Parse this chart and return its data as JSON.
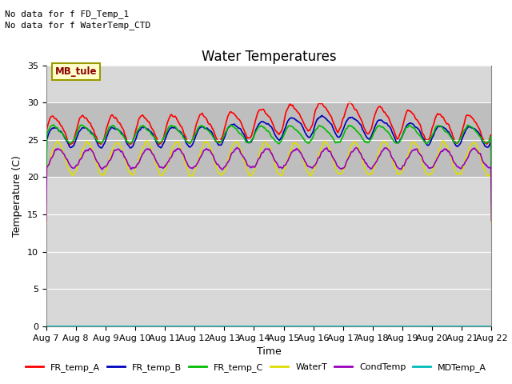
{
  "title": "Water Temperatures",
  "xlabel": "Time",
  "ylabel": "Temperature (C)",
  "ylim": [
    0,
    35
  ],
  "yticks": [
    0,
    5,
    10,
    15,
    20,
    25,
    30,
    35
  ],
  "date_labels": [
    "Aug 7",
    "Aug 8",
    "Aug 9",
    "Aug 10",
    "Aug 11",
    "Aug 12",
    "Aug 13",
    "Aug 14",
    "Aug 15",
    "Aug 16",
    "Aug 17",
    "Aug 18",
    "Aug 19",
    "Aug 20",
    "Aug 21",
    "Aug 22"
  ],
  "shaded_band": [
    20,
    30
  ],
  "no_data_text": [
    "No data for f FD_Temp_1",
    "No data for f WaterTemp_CTD"
  ],
  "mb_tule_label": "MB_tule",
  "legend_entries": [
    "FR_temp_A",
    "FR_temp_B",
    "FR_temp_C",
    "WaterT",
    "CondTemp",
    "MDTemp_A"
  ],
  "legend_colors": [
    "#ff0000",
    "#0000bb",
    "#00bb00",
    "#dddd00",
    "#9900bb",
    "#00bbbb"
  ],
  "line_colors": [
    "#ff0000",
    "#0000bb",
    "#00bb00",
    "#dddd00",
    "#9900bb",
    "#00bbbb"
  ],
  "background_color": "#d8d8d8",
  "fig_bg_color": "#ffffff",
  "title_fontsize": 12,
  "axis_fontsize": 9,
  "tick_fontsize": 8,
  "shaded_color": "#c0c0c0"
}
